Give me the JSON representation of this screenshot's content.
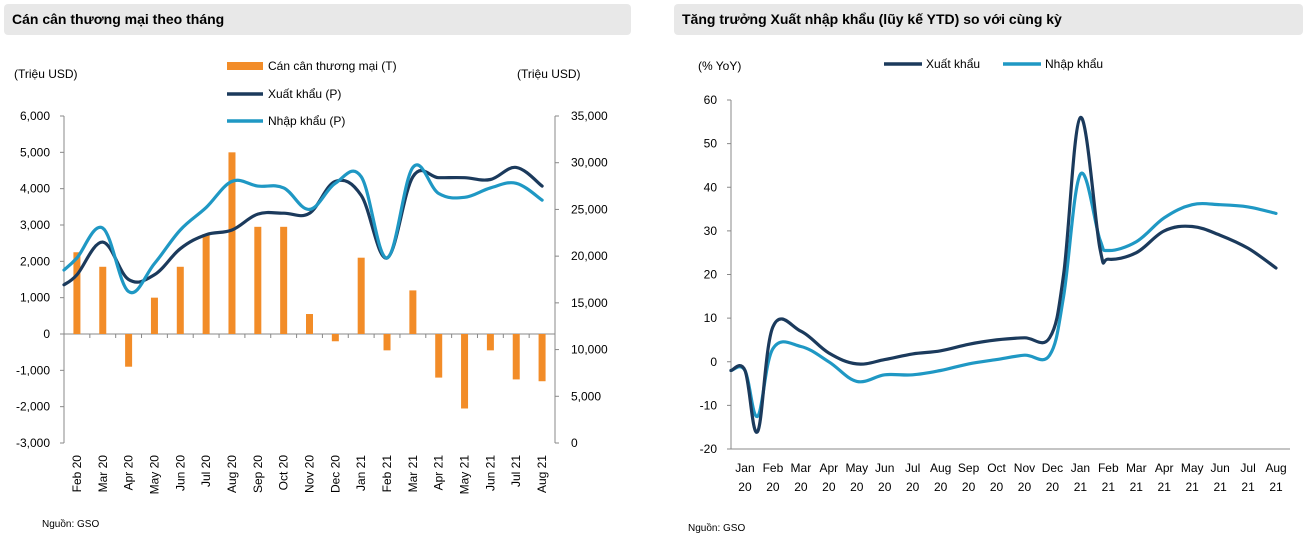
{
  "colors": {
    "bar": "#f28c28",
    "export": "#1b3a5c",
    "import": "#1f98c4",
    "header_bg": "#e8e8e8"
  },
  "left": {
    "title": "Cán cân thương mại theo tháng",
    "source": "Nguồn: GSO",
    "y_left_unit": "(Triệu USD)",
    "y_right_unit": "(Triệu USD)"
  },
  "right": {
    "title": "Tăng trưởng Xuất nhập khẩu (lũy kế YTD) so với cùng kỳ",
    "source": "Nguồn: GSO",
    "y_unit": "(% YoY)"
  },
  "chart_data": [
    {
      "type": "bar",
      "categories": [
        "Feb 20",
        "Mar 20",
        "Apr 20",
        "May 20",
        "Jun 20",
        "Jul 20",
        "Aug 20",
        "Sep 20",
        "Oct 20",
        "Nov 20",
        "Dec 20",
        "Jan 21",
        "Feb 21",
        "Mar 21",
        "Apr 21",
        "May 21",
        "Jun 21",
        "Jul 21",
        "Aug 21"
      ],
      "series": [
        {
          "name": "Cán cân thương mại (T)",
          "axis": "left",
          "kind": "bar",
          "values": [
            2250,
            1850,
            -900,
            1000,
            1850,
            2750,
            5000,
            2950,
            2950,
            550,
            -200,
            2100,
            -450,
            1200,
            -1200,
            -2050,
            -450,
            -1250,
            -1300
          ]
        },
        {
          "name": "Xuất khẩu (P)",
          "axis": "right",
          "kind": "line",
          "values": [
            19800,
            23000,
            16200,
            19200,
            22800,
            25200,
            28000,
            27500,
            27300,
            25000,
            27800,
            28500,
            19800,
            29500,
            26700,
            26300,
            27300,
            27800,
            26000
          ]
        },
        {
          "name": "Nhập khẩu (P)",
          "axis": "right",
          "kind": "line",
          "values": [
            18000,
            21500,
            17500,
            18000,
            20800,
            22300,
            22800,
            24500,
            24600,
            24600,
            28000,
            26500,
            19800,
            28500,
            28400,
            28400,
            28200,
            29500,
            27500
          ]
        }
      ],
      "ylim_left": [
        -3000,
        6000
      ],
      "yticks_left": [
        "6,000",
        "5,000",
        "4,000",
        "3,000",
        "2,000",
        "1,000",
        "0",
        "-1,000",
        "-2,000",
        "-3,000"
      ],
      "ylim_right": [
        0,
        35000
      ],
      "yticks_right": [
        "35,000",
        "30,000",
        "25,000",
        "20,000",
        "15,000",
        "10,000",
        "5,000",
        "0"
      ],
      "legend": "top-center"
    },
    {
      "type": "line",
      "categories": [
        [
          "Jan",
          "20"
        ],
        [
          "Feb",
          "20"
        ],
        [
          "Mar",
          "20"
        ],
        [
          "Apr",
          "20"
        ],
        [
          "May",
          "20"
        ],
        [
          "Jun",
          "20"
        ],
        [
          "Jul",
          "20"
        ],
        [
          "Aug",
          "20"
        ],
        [
          "Sep",
          "20"
        ],
        [
          "Oct",
          "20"
        ],
        [
          "Nov",
          "20"
        ],
        [
          "Dec",
          "20"
        ],
        [
          "Jan",
          "21"
        ],
        [
          "Feb",
          "21"
        ],
        [
          "Mar",
          "21"
        ],
        [
          "Apr",
          "21"
        ],
        [
          "May",
          "21"
        ],
        [
          "Jun",
          "21"
        ],
        [
          "Jul",
          "21"
        ],
        [
          "Aug",
          "21"
        ]
      ],
      "x_start_fraction": 0.0,
      "series": [
        {
          "name": "Xuất khẩu",
          "points": [
            [
              0,
              -2
            ],
            [
              0.45,
              -16
            ],
            [
              1,
              8
            ],
            [
              2,
              7
            ],
            [
              3,
              2
            ],
            [
              4,
              -0.5
            ],
            [
              5,
              0.5
            ],
            [
              6,
              1.8
            ],
            [
              7,
              2.5
            ],
            [
              8,
              4
            ],
            [
              9,
              5
            ],
            [
              10,
              5.5
            ],
            [
              10.9,
              5.5
            ],
            [
              11.4,
              20
            ],
            [
              12,
              56
            ],
            [
              12.7,
              26
            ],
            [
              13,
              23.5
            ],
            [
              14,
              25
            ],
            [
              15,
              30
            ],
            [
              16,
              31
            ],
            [
              17,
              29
            ],
            [
              18,
              26
            ],
            [
              19,
              21.5
            ]
          ]
        },
        {
          "name": "Nhập khẩu",
          "points": [
            [
              0,
              -2
            ],
            [
              0.45,
              -12.5
            ],
            [
              1,
              3
            ],
            [
              2,
              3.5
            ],
            [
              3,
              0
            ],
            [
              4,
              -4.5
            ],
            [
              5,
              -3
            ],
            [
              6,
              -3
            ],
            [
              7,
              -2
            ],
            [
              8,
              -0.5
            ],
            [
              9,
              0.5
            ],
            [
              10,
              1.5
            ],
            [
              10.9,
              1.5
            ],
            [
              11.4,
              15
            ],
            [
              12,
              43
            ],
            [
              12.7,
              28
            ],
            [
              13,
              25.5
            ],
            [
              14,
              27.5
            ],
            [
              15,
              33
            ],
            [
              16,
              36
            ],
            [
              17,
              36
            ],
            [
              18,
              35.5
            ],
            [
              19,
              34
            ]
          ]
        }
      ],
      "ylim": [
        -20,
        60
      ],
      "yticks": [
        "60",
        "50",
        "40",
        "30",
        "20",
        "10",
        "0",
        "-10",
        "-20"
      ],
      "legend": "top-center"
    }
  ]
}
